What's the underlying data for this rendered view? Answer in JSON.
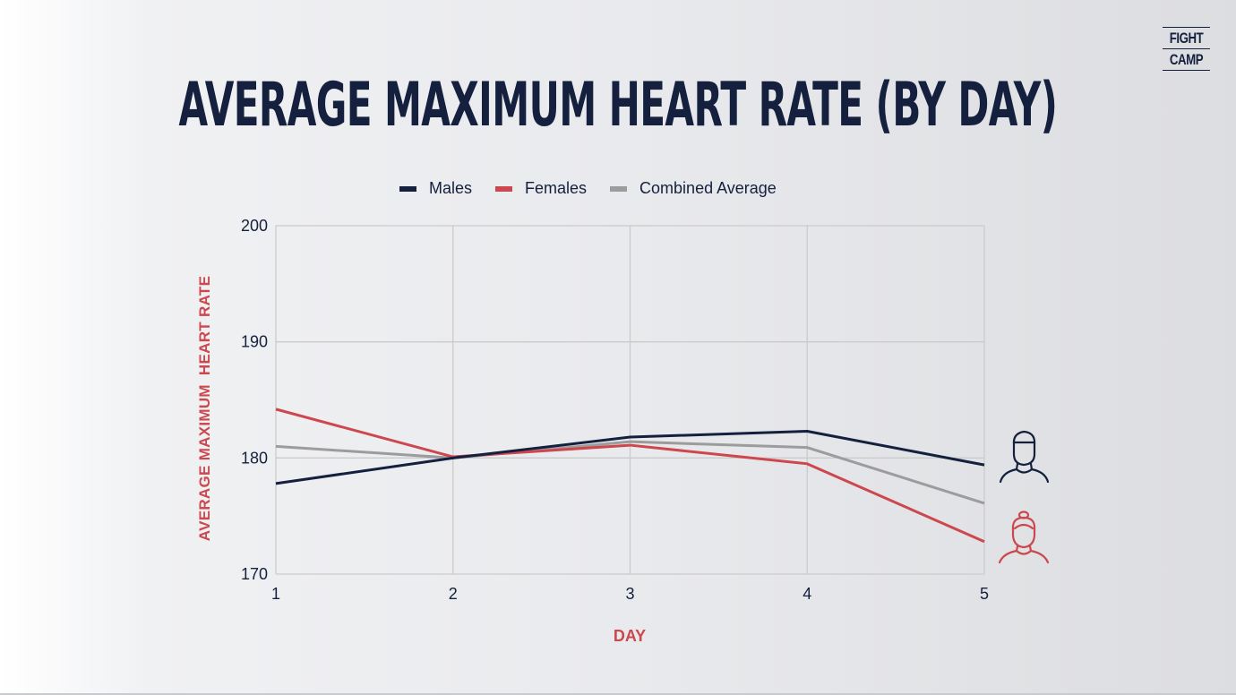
{
  "logo": {
    "line1": "FIGHT",
    "line2": "CAMP"
  },
  "title": "AVERAGE MAXIMUM HEART RATE (BY DAY)",
  "colors": {
    "males": "#14203d",
    "females": "#cc474e",
    "combined": "#9c9c9c",
    "grid": "#cbcbcb",
    "text": "#14203d"
  },
  "icons": {
    "male": "male-avatar-icon",
    "female": "female-avatar-icon"
  },
  "chart_data": {
    "type": "line",
    "title": "AVERAGE MAXIMUM HEART RATE (BY DAY)",
    "xlabel": "DAY",
    "ylabel": "AVERAGE MAXIMUM  HEART RATE",
    "x": [
      1,
      2,
      3,
      4,
      5
    ],
    "xticks": [
      "1",
      "2",
      "3",
      "4",
      "5"
    ],
    "yticks": [
      "170",
      "180",
      "190",
      "200"
    ],
    "xlim": [
      1,
      5
    ],
    "ylim": [
      170,
      200
    ],
    "grid": true,
    "legend_position": "top",
    "series": [
      {
        "name": "Males",
        "values": [
          177.8,
          180.0,
          181.8,
          182.3,
          179.4
        ]
      },
      {
        "name": "Females",
        "values": [
          184.2,
          180.1,
          181.1,
          179.5,
          172.8
        ]
      },
      {
        "name": "Combined Average",
        "values": [
          181.0,
          180.0,
          181.4,
          180.9,
          176.1
        ]
      }
    ]
  }
}
